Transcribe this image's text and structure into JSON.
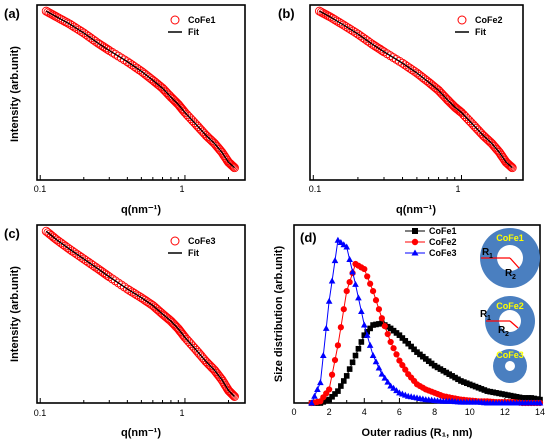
{
  "chart_data": [
    {
      "panel": "(a)",
      "type": "scatter",
      "xscale": "log",
      "yscale": "log",
      "xlabel": "q(nm⁻¹)",
      "ylabel": "Intensity (arb.unit)",
      "xlim": [
        0.095,
        2.6
      ],
      "x_ticks": [
        "0.1",
        "1"
      ],
      "series": [
        {
          "name": "CoFe1",
          "marker": "open-circle",
          "color": "#ff0000",
          "x": [
            0.11,
            0.13,
            0.16,
            0.2,
            0.25,
            0.3,
            0.4,
            0.5,
            0.6,
            0.7,
            0.8,
            0.9,
            1.0,
            1.2,
            1.4,
            1.6,
            1.8,
            2.0,
            2.2
          ],
          "y": [
            1.0,
            0.93,
            0.85,
            0.76,
            0.67,
            0.61,
            0.53,
            0.47,
            0.42,
            0.38,
            0.34,
            0.31,
            0.28,
            0.24,
            0.21,
            0.19,
            0.17,
            0.15,
            0.14
          ]
        },
        {
          "name": "Fit",
          "marker": "line",
          "color": "#000000",
          "x": [
            0.11,
            0.13,
            0.16,
            0.2,
            0.25,
            0.3,
            0.4,
            0.5,
            0.6,
            0.7,
            0.8,
            0.9,
            1.0,
            1.2,
            1.4,
            1.6,
            1.8,
            2.0,
            2.2
          ],
          "y": [
            1.0,
            0.93,
            0.85,
            0.76,
            0.67,
            0.61,
            0.53,
            0.47,
            0.42,
            0.38,
            0.34,
            0.31,
            0.28,
            0.24,
            0.21,
            0.19,
            0.17,
            0.15,
            0.14
          ]
        }
      ]
    },
    {
      "panel": "(b)",
      "type": "scatter",
      "xscale": "log",
      "yscale": "log",
      "xlabel": "q(nm⁻¹)",
      "ylabel": "",
      "xlim": [
        0.095,
        2.6
      ],
      "x_ticks": [
        "0.1",
        "1"
      ],
      "series": [
        {
          "name": "CoFe2",
          "marker": "open-circle",
          "color": "#ff0000",
          "x": [
            0.11,
            0.13,
            0.16,
            0.2,
            0.25,
            0.3,
            0.4,
            0.5,
            0.6,
            0.7,
            0.8,
            0.9,
            1.0,
            1.2,
            1.4,
            1.6,
            1.8,
            2.0,
            2.2
          ],
          "y": [
            1.0,
            0.93,
            0.84,
            0.75,
            0.66,
            0.6,
            0.52,
            0.46,
            0.41,
            0.37,
            0.33,
            0.3,
            0.28,
            0.24,
            0.21,
            0.19,
            0.17,
            0.15,
            0.14
          ]
        },
        {
          "name": "Fit",
          "marker": "line",
          "color": "#000000",
          "x": [
            0.11,
            0.13,
            0.16,
            0.2,
            0.25,
            0.3,
            0.4,
            0.5,
            0.6,
            0.7,
            0.8,
            0.9,
            1.0,
            1.2,
            1.4,
            1.6,
            1.8,
            2.0,
            2.2
          ],
          "y": [
            1.0,
            0.93,
            0.84,
            0.75,
            0.66,
            0.6,
            0.52,
            0.46,
            0.41,
            0.37,
            0.33,
            0.3,
            0.28,
            0.24,
            0.21,
            0.19,
            0.17,
            0.15,
            0.14
          ]
        }
      ]
    },
    {
      "panel": "(c)",
      "type": "scatter",
      "xscale": "log",
      "yscale": "log",
      "xlabel": "q(nm⁻¹)",
      "ylabel": "Intensity (arb.unit)",
      "xlim": [
        0.095,
        2.6
      ],
      "x_ticks": [
        "0.1",
        "1"
      ],
      "series": [
        {
          "name": "CoFe3",
          "marker": "open-circle",
          "color": "#ff0000",
          "x": [
            0.11,
            0.13,
            0.16,
            0.2,
            0.25,
            0.3,
            0.4,
            0.5,
            0.6,
            0.7,
            0.8,
            0.9,
            1.0,
            1.2,
            1.4,
            1.6,
            1.8,
            2.0,
            2.2
          ],
          "y": [
            1.0,
            0.9,
            0.8,
            0.71,
            0.63,
            0.57,
            0.49,
            0.44,
            0.4,
            0.36,
            0.33,
            0.3,
            0.27,
            0.23,
            0.2,
            0.18,
            0.16,
            0.14,
            0.13
          ]
        },
        {
          "name": "Fit",
          "marker": "line",
          "color": "#000000",
          "x": [
            0.11,
            0.13,
            0.16,
            0.2,
            0.25,
            0.3,
            0.4,
            0.5,
            0.6,
            0.7,
            0.8,
            0.9,
            1.0,
            1.2,
            1.4,
            1.6,
            1.8,
            2.0,
            2.2
          ],
          "y": [
            1.0,
            0.9,
            0.8,
            0.71,
            0.63,
            0.57,
            0.49,
            0.44,
            0.4,
            0.36,
            0.33,
            0.3,
            0.27,
            0.23,
            0.2,
            0.18,
            0.16,
            0.14,
            0.13
          ]
        }
      ]
    },
    {
      "panel": "(d)",
      "type": "line",
      "xlabel": "Outer radius (R₁, nm)",
      "ylabel": "Size distribution (arb.unit)",
      "xlim": [
        0,
        14
      ],
      "ylim": [
        0,
        1.05
      ],
      "x_ticks": [
        0,
        2,
        4,
        6,
        8,
        10,
        12,
        14
      ],
      "series": [
        {
          "name": "CoFe1",
          "marker": "square",
          "color": "#000000",
          "x": [
            1.0,
            1.5,
            2.0,
            2.5,
            3.0,
            3.5,
            4.0,
            4.5,
            5.0,
            5.5,
            6.0,
            6.5,
            7.0,
            7.5,
            8.0,
            8.5,
            9.0,
            9.5,
            10.0,
            10.5,
            11.0,
            11.5,
            12.0,
            12.5,
            13.0,
            13.5,
            14.0
          ],
          "y": [
            0.0,
            0.0,
            0.02,
            0.07,
            0.16,
            0.28,
            0.4,
            0.46,
            0.47,
            0.44,
            0.4,
            0.35,
            0.3,
            0.26,
            0.22,
            0.19,
            0.16,
            0.13,
            0.11,
            0.09,
            0.07,
            0.06,
            0.05,
            0.04,
            0.03,
            0.03,
            0.02
          ]
        },
        {
          "name": "CoFe2",
          "marker": "circle",
          "color": "#ff0000",
          "x": [
            1.0,
            1.5,
            2.0,
            2.5,
            3.0,
            3.5,
            4.0,
            4.5,
            5.0,
            5.5,
            6.0,
            6.5,
            7.0,
            7.5,
            8.0,
            8.5,
            9.0,
            9.5,
            10.0,
            10.5,
            11.0,
            11.5,
            12.0,
            12.5,
            13.0,
            13.5,
            14.0
          ],
          "y": [
            0.0,
            0.01,
            0.08,
            0.34,
            0.66,
            0.82,
            0.79,
            0.66,
            0.5,
            0.36,
            0.25,
            0.17,
            0.11,
            0.08,
            0.06,
            0.04,
            0.03,
            0.02,
            0.015,
            0.01,
            0.01,
            0.005,
            0.005,
            0.005,
            0.0,
            0.0,
            0.0
          ]
        },
        {
          "name": "CoFe3",
          "marker": "triangle",
          "color": "#0000ff",
          "x": [
            1.0,
            1.5,
            2.0,
            2.5,
            3.0,
            3.5,
            4.0,
            4.5,
            5.0,
            5.5,
            6.0,
            6.5,
            7.0,
            7.5,
            8.0,
            8.5,
            9.0,
            9.5,
            10.0,
            10.5,
            11.0,
            11.5,
            12.0,
            12.5,
            13.0,
            13.5,
            14.0
          ],
          "y": [
            0.0,
            0.12,
            0.6,
            0.96,
            0.92,
            0.7,
            0.46,
            0.28,
            0.17,
            0.1,
            0.06,
            0.04,
            0.03,
            0.02,
            0.015,
            0.01,
            0.01,
            0.005,
            0.005,
            0.005,
            0.0,
            0.0,
            0.0,
            0.0,
            0.0,
            0.0,
            0.0
          ]
        }
      ],
      "inset": {
        "shells": [
          "CoFe1",
          "CoFe2",
          "CoFe3"
        ],
        "radius_labels": [
          "R",
          "1",
          "R",
          "2"
        ],
        "shell_color": "#4a7fc0",
        "core_color": "#ffffff",
        "arrow_color": "#ff0000"
      }
    }
  ]
}
